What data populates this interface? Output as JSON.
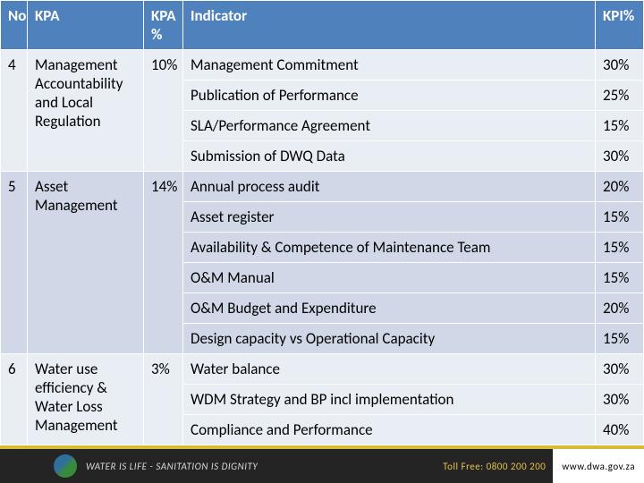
{
  "colors": {
    "header_bg": "#4f81bd",
    "header_text": "#ffffff",
    "row_odd": "#e9edf4",
    "row_even": "#d0d8e8",
    "footer_bg": "#242424",
    "footer_accent": "#d6bb35",
    "footer_text": "#d8d8d8",
    "tollfree_color": "#e6c24a"
  },
  "typography": {
    "cell_fontsize": 17,
    "footer_fontsize": 11
  },
  "columns": {
    "no": "No",
    "kpa": "KPA",
    "kpa_pct": "KPA %",
    "indicator": "Indicator",
    "kpi_pct": "KPI%"
  },
  "groups": [
    {
      "no": "4",
      "kpa": "Management Accountability and Local Regulation",
      "kpa_pct": "10%",
      "parity": "odd",
      "rows": [
        {
          "indicator": "Management Commitment",
          "kpi": "30%"
        },
        {
          "indicator": "Publication of Performance",
          "kpi": "25%"
        },
        {
          "indicator": "SLA/Performance Agreement",
          "kpi": "15%"
        },
        {
          "indicator": "Submission of DWQ Data",
          "kpi": "30%"
        }
      ]
    },
    {
      "no": "5",
      "kpa": "Asset Management",
      "kpa_pct": "14%",
      "parity": "even",
      "rows": [
        {
          "indicator": "Annual process audit",
          "kpi": "20%"
        },
        {
          "indicator": "Asset register",
          "kpi": "15%"
        },
        {
          "indicator": "Availability & Competence of Maintenance Team",
          "kpi": "15%"
        },
        {
          "indicator": "O&M Manual",
          "kpi": "15%"
        },
        {
          "indicator": "O&M Budget and Expenditure",
          "kpi": "20%"
        },
        {
          "indicator": "Design capacity vs Operational Capacity",
          "kpi": "15%"
        }
      ]
    },
    {
      "no": "6",
      "kpa": "Water use efficiency & Water Loss Management",
      "kpa_pct": "3%",
      "parity": "odd",
      "rows": [
        {
          "indicator": "Water balance",
          "kpi": "30%"
        },
        {
          "indicator": "WDM Strategy and BP incl implementation",
          "kpi": "30%"
        },
        {
          "indicator": "Compliance and Performance",
          "kpi": "40%"
        }
      ]
    }
  ],
  "footer": {
    "slogan": "WATER IS LIFE - SANITATION IS DIGNITY",
    "tollfree": "Toll Free: 0800 200 200",
    "url": "www.dwa.gov.za"
  }
}
